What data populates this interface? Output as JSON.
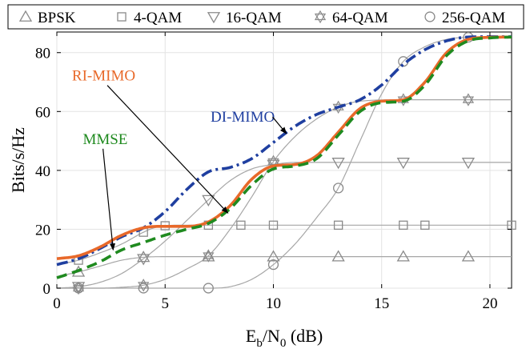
{
  "chart_data": {
    "type": "line",
    "xlabel_base": "E",
    "xlabel_sub1": "b",
    "xlabel_mid": "/N",
    "xlabel_sub2": "0",
    "xlabel_tail": " (dB)",
    "ylabel": "Bits/s/Hz",
    "xlim": [
      0,
      21
    ],
    "ylim": [
      0,
      87
    ],
    "xticks": [
      0,
      5,
      10,
      15,
      20
    ],
    "yticks": [
      0,
      20,
      40,
      60,
      80
    ],
    "grid": true,
    "legend": {
      "placement": "top",
      "entries": [
        {
          "label": "BPSK",
          "marker": "triangle-up"
        },
        {
          "label": "4-QAM",
          "marker": "square"
        },
        {
          "label": "16-QAM",
          "marker": "triangle-down"
        },
        {
          "label": "64-QAM",
          "marker": "hexagram"
        },
        {
          "label": "256-QAM",
          "marker": "circle"
        }
      ]
    },
    "modulation_curves": [
      {
        "label": "BPSK",
        "marker": "triangle-up",
        "x": [
          0,
          1,
          2,
          3,
          4,
          5,
          7,
          10,
          13,
          16,
          19,
          21
        ],
        "y": [
          4,
          5.5,
          7.5,
          9.5,
          10.5,
          10.7,
          10.7,
          10.7,
          10.7,
          10.7,
          10.7,
          10.7
        ],
        "marker_x": [
          1,
          4,
          7,
          10,
          13,
          16,
          19
        ]
      },
      {
        "label": "4-QAM",
        "marker": "square",
        "x": [
          0,
          1,
          2,
          3,
          4,
          4.5,
          5,
          6,
          7,
          10,
          13,
          16,
          19,
          21
        ],
        "y": [
          8,
          9.5,
          12,
          15,
          19,
          20.5,
          21.2,
          21.4,
          21.4,
          21.4,
          21.4,
          21.4,
          21.4,
          21.4
        ],
        "marker_x": [
          1,
          4,
          5,
          7,
          8.5,
          10,
          13,
          16,
          17,
          21
        ]
      },
      {
        "label": "16-QAM",
        "marker": "triangle-down",
        "x": [
          0,
          1,
          2,
          3,
          4,
          5,
          6,
          7,
          8,
          9,
          10,
          11,
          13,
          16,
          19,
          21
        ],
        "y": [
          0,
          0.5,
          2,
          5,
          10,
          16,
          23,
          30,
          36.5,
          40.5,
          42,
          42.7,
          42.7,
          42.7,
          42.7,
          42.7
        ],
        "marker_x": [
          1,
          4,
          7,
          10,
          13,
          16,
          19
        ]
      },
      {
        "label": "64-QAM",
        "marker": "hexagram",
        "x": [
          0,
          1,
          2,
          3,
          4,
          5,
          6,
          7,
          8,
          9,
          10,
          11,
          12,
          13,
          14,
          16,
          19,
          21
        ],
        "y": [
          0,
          0,
          0,
          0.3,
          1,
          3,
          6.5,
          11,
          20,
          31,
          43,
          51.5,
          57.5,
          61.5,
          63.5,
          64,
          64,
          64
        ],
        "marker_x": [
          1,
          4,
          7,
          10,
          13,
          16,
          19
        ]
      },
      {
        "label": "256-QAM",
        "marker": "circle",
        "x": [
          0,
          1,
          2,
          4,
          6,
          7,
          8,
          9,
          10,
          11,
          12,
          13,
          14,
          15,
          16,
          17,
          18,
          19,
          20,
          21
        ],
        "y": [
          0,
          0,
          0,
          0,
          0,
          0,
          0.5,
          3,
          8,
          15,
          24,
          34,
          50,
          66,
          77,
          82,
          84.5,
          85.2,
          85.3,
          85.3
        ],
        "marker_x": [
          1,
          4,
          7,
          10,
          13,
          16,
          19
        ]
      }
    ],
    "series": [
      {
        "name": "DI-MIMO",
        "color": "#1f3fa0",
        "style": "dashdot",
        "x": [
          0,
          1,
          2,
          3,
          4,
          5,
          6,
          7,
          8,
          9,
          10,
          11,
          12,
          13,
          14,
          15,
          16,
          17,
          18,
          19,
          20,
          21
        ],
        "y": [
          8,
          10,
          13.5,
          17.5,
          20.5,
          26,
          33.5,
          39.5,
          41,
          44,
          49.5,
          55,
          59,
          61.5,
          64,
          69,
          76,
          81,
          84,
          85.3,
          85.4,
          85.4
        ]
      },
      {
        "name": "RI-MIMO",
        "color": "#e8692a",
        "style": "solid",
        "x": [
          0,
          1,
          2,
          3,
          4,
          5,
          6,
          7,
          8,
          9,
          10,
          11,
          12,
          13,
          14,
          15,
          16,
          17,
          18,
          19,
          20,
          21
        ],
        "y": [
          10,
          11,
          14,
          18,
          20.5,
          21,
          21,
          22.5,
          28,
          37,
          41.5,
          42,
          45,
          53,
          61,
          63.5,
          64,
          70,
          80,
          84.5,
          85.2,
          85.3
        ]
      },
      {
        "name": "MMSE",
        "color": "#1f8a1f",
        "style": "dashed",
        "x": [
          0,
          1,
          2,
          3,
          4,
          5,
          6,
          7,
          8,
          9,
          10,
          11,
          12,
          13,
          14,
          15,
          16,
          17,
          18,
          19,
          20,
          21
        ],
        "y": [
          3.5,
          6,
          9,
          13,
          15.5,
          18,
          20,
          22,
          27,
          35,
          40.5,
          41.5,
          44,
          52,
          60,
          63,
          63.5,
          69,
          79,
          84,
          85,
          85.3
        ]
      }
    ],
    "annotations": [
      {
        "text": "DI-MIMO",
        "color": "#1f3fa0",
        "text_xy": [
          7.1,
          56.5
        ],
        "arrow_to": [
          10.6,
          52.5
        ]
      },
      {
        "text": "RI-MIMO",
        "color": "#e8692a",
        "text_xy": [
          0.7,
          70.5
        ],
        "arrow_to": [
          7.9,
          25.5
        ]
      },
      {
        "text": "MMSE",
        "color": "#1f8a1f",
        "text_xy": [
          1.2,
          49
        ],
        "arrow_to": [
          2.6,
          13
        ]
      }
    ]
  }
}
